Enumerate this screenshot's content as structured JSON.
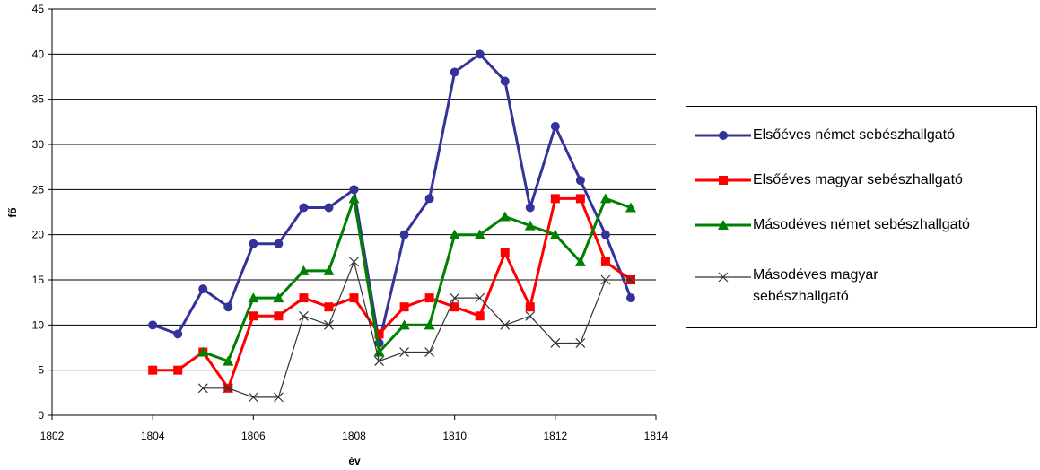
{
  "chart_data": {
    "type": "line",
    "xlabel": "év",
    "ylabel": "fő",
    "xlim": [
      1802,
      1814
    ],
    "ylim": [
      0,
      45
    ],
    "xticks": [
      1802,
      1804,
      1806,
      1808,
      1810,
      1812,
      1814
    ],
    "yticks": [
      0,
      5,
      10,
      15,
      20,
      25,
      30,
      35,
      40,
      45
    ],
    "grid": "horizontal",
    "legend_position": "right",
    "series": [
      {
        "name": "Elsőéves német sebészhallgató",
        "color": "#333399",
        "marker": "circle",
        "x": [
          1804,
          1804.5,
          1805,
          1805.5,
          1806,
          1806.5,
          1807,
          1807.5,
          1808,
          1808.5,
          1809,
          1809.5,
          1810,
          1810.5,
          1811,
          1811.5,
          1812,
          1812.5,
          1813,
          1813.5
        ],
        "y": [
          10,
          9,
          14,
          12,
          19,
          19,
          23,
          23,
          25,
          8,
          20,
          24,
          38,
          40,
          37,
          23,
          32,
          26,
          20,
          13
        ]
      },
      {
        "name": "Elsőéves magyar sebészhallgató",
        "color": "#ff0000",
        "marker": "square",
        "x": [
          1804,
          1804.5,
          1805,
          1805.5,
          1806,
          1806.5,
          1807,
          1807.5,
          1808,
          1808.5,
          1809,
          1809.5,
          1810,
          1810.5,
          1811,
          1811.5,
          1812,
          1812.5,
          1813,
          1813.5
        ],
        "y": [
          5,
          5,
          7,
          3,
          11,
          11,
          13,
          12,
          13,
          9,
          12,
          13,
          12,
          11,
          18,
          12,
          24,
          24,
          17,
          15
        ]
      },
      {
        "name": "Másodéves német sebészhallgató",
        "color": "#008000",
        "marker": "triangle",
        "x": [
          1805,
          1805.5,
          1806,
          1806.5,
          1807,
          1807.5,
          1808,
          1808.5,
          1809,
          1809.5,
          1810,
          1810.5,
          1811,
          1811.5,
          1812,
          1812.5,
          1813,
          1813.5
        ],
        "y": [
          7,
          6,
          13,
          13,
          16,
          16,
          24,
          7,
          10,
          10,
          20,
          20,
          22,
          21,
          20,
          17,
          24,
          23
        ]
      },
      {
        "name": "Másodéves magyar sebészhallgató",
        "color": "#333333",
        "marker": "x",
        "x": [
          1805,
          1805.5,
          1806,
          1806.5,
          1807,
          1807.5,
          1808,
          1808.5,
          1809,
          1809.5,
          1810,
          1810.5,
          1811,
          1811.5,
          1812,
          1812.5,
          1813,
          1813.5
        ],
        "y": [
          3,
          3,
          2,
          2,
          11,
          10,
          17,
          6,
          7,
          7,
          13,
          13,
          10,
          11,
          8,
          8,
          15,
          15
        ]
      }
    ]
  },
  "legend": {
    "items": [
      "Elsőéves német sebészhallgató",
      "Elsőéves magyar sebészhallgató",
      "Másodéves német sebészhallgató",
      "Másodéves magyar sebészhallgató"
    ]
  }
}
